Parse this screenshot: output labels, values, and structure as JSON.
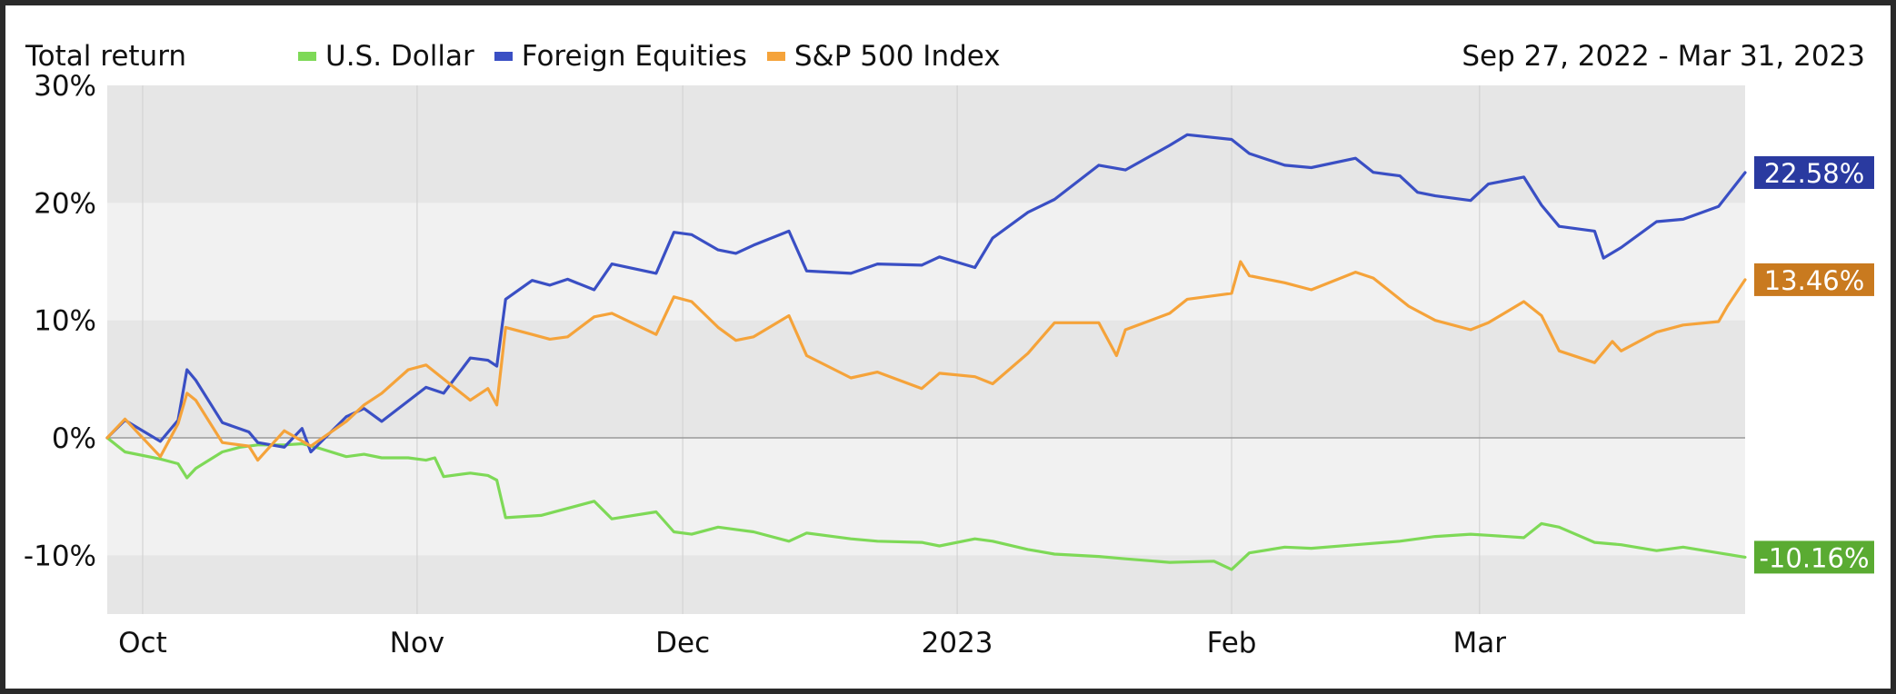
{
  "header": {
    "title": "Total return",
    "date_range": "Sep 27, 2022 - Mar 31, 2023"
  },
  "chart_data": {
    "type": "line",
    "title": "Total return",
    "date_range": "Sep 27, 2022 - Mar 31, 2023",
    "ylim": [
      -15,
      30
    ],
    "y_ticks": [
      {
        "value": 30,
        "label": "30%"
      },
      {
        "value": 20,
        "label": "20%"
      },
      {
        "value": 10,
        "label": "10%"
      },
      {
        "value": 0,
        "label": "0%"
      },
      {
        "value": -10,
        "label": "-10%"
      }
    ],
    "x_ticks": [
      {
        "date": "2022-10-01",
        "label": "Oct"
      },
      {
        "date": "2022-11-01",
        "label": "Nov"
      },
      {
        "date": "2022-12-01",
        "label": "Dec"
      },
      {
        "date": "2023-01-01",
        "label": "2023"
      },
      {
        "date": "2023-02-01",
        "label": "Feb"
      },
      {
        "date": "2023-03-01",
        "label": "Mar"
      }
    ],
    "x_range": [
      "2022-09-27",
      "2023-03-31"
    ],
    "grid": true,
    "legend_position": "top",
    "series": [
      {
        "name": "U.S. Dollar",
        "color": "#7ed957",
        "end_label": "-10.16%",
        "end_label_bg": "#5aab32",
        "points": [
          [
            "2022-09-27",
            0.0
          ],
          [
            "2022-09-29",
            -1.2
          ],
          [
            "2022-10-03",
            -1.8
          ],
          [
            "2022-10-05",
            -2.2
          ],
          [
            "2022-10-06",
            -3.4
          ],
          [
            "2022-10-07",
            -2.6
          ],
          [
            "2022-10-10",
            -1.2
          ],
          [
            "2022-10-12",
            -0.8
          ],
          [
            "2022-10-14",
            -0.6
          ],
          [
            "2022-10-17",
            -0.6
          ],
          [
            "2022-10-19",
            -0.5
          ],
          [
            "2022-10-21",
            -0.9
          ],
          [
            "2022-10-24",
            -1.6
          ],
          [
            "2022-10-26",
            -1.4
          ],
          [
            "2022-10-28",
            -1.7
          ],
          [
            "2022-10-31",
            -1.7
          ],
          [
            "2022-11-02",
            -1.9
          ],
          [
            "2022-11-03",
            -1.7
          ],
          [
            "2022-11-04",
            -3.3
          ],
          [
            "2022-11-07",
            -3.0
          ],
          [
            "2022-11-09",
            -3.2
          ],
          [
            "2022-11-10",
            -3.6
          ],
          [
            "2022-11-11",
            -6.8
          ],
          [
            "2022-11-15",
            -6.6
          ],
          [
            "2022-11-17",
            -6.2
          ],
          [
            "2022-11-21",
            -5.4
          ],
          [
            "2022-11-23",
            -6.9
          ],
          [
            "2022-11-28",
            -6.3
          ],
          [
            "2022-11-30",
            -8.0
          ],
          [
            "2022-12-02",
            -8.2
          ],
          [
            "2022-12-05",
            -7.6
          ],
          [
            "2022-12-07",
            -7.8
          ],
          [
            "2022-12-09",
            -8.0
          ],
          [
            "2022-12-13",
            -8.8
          ],
          [
            "2022-12-15",
            -8.1
          ],
          [
            "2022-12-20",
            -8.6
          ],
          [
            "2022-12-23",
            -8.8
          ],
          [
            "2022-12-28",
            -8.9
          ],
          [
            "2022-12-30",
            -9.2
          ],
          [
            "2023-01-03",
            -8.6
          ],
          [
            "2023-01-05",
            -8.8
          ],
          [
            "2023-01-09",
            -9.5
          ],
          [
            "2023-01-12",
            -9.9
          ],
          [
            "2023-01-17",
            -10.1
          ],
          [
            "2023-01-20",
            -10.3
          ],
          [
            "2023-01-25",
            -10.6
          ],
          [
            "2023-01-30",
            -10.5
          ],
          [
            "2023-02-01",
            -11.2
          ],
          [
            "2023-02-03",
            -9.8
          ],
          [
            "2023-02-07",
            -9.3
          ],
          [
            "2023-02-10",
            -9.4
          ],
          [
            "2023-02-15",
            -9.1
          ],
          [
            "2023-02-20",
            -8.8
          ],
          [
            "2023-02-24",
            -8.4
          ],
          [
            "2023-02-28",
            -8.2
          ],
          [
            "2023-03-02",
            -8.3
          ],
          [
            "2023-03-06",
            -8.5
          ],
          [
            "2023-03-08",
            -7.3
          ],
          [
            "2023-03-10",
            -7.6
          ],
          [
            "2023-03-14",
            -8.9
          ],
          [
            "2023-03-17",
            -9.1
          ],
          [
            "2023-03-21",
            -9.6
          ],
          [
            "2023-03-24",
            -9.3
          ],
          [
            "2023-03-28",
            -9.8
          ],
          [
            "2023-03-31",
            -10.16
          ]
        ]
      },
      {
        "name": "Foreign Equities",
        "color": "#3a4fc4",
        "end_label": "22.58%",
        "end_label_bg": "#2a3aa0",
        "points": [
          [
            "2022-09-27",
            0.0
          ],
          [
            "2022-09-29",
            1.5
          ],
          [
            "2022-10-03",
            -0.3
          ],
          [
            "2022-10-05",
            1.5
          ],
          [
            "2022-10-06",
            5.8
          ],
          [
            "2022-10-07",
            4.9
          ],
          [
            "2022-10-10",
            1.3
          ],
          [
            "2022-10-13",
            0.5
          ],
          [
            "2022-10-14",
            -0.4
          ],
          [
            "2022-10-17",
            -0.8
          ],
          [
            "2022-10-19",
            0.8
          ],
          [
            "2022-10-20",
            -1.2
          ],
          [
            "2022-10-24",
            1.8
          ],
          [
            "2022-10-26",
            2.5
          ],
          [
            "2022-10-28",
            1.4
          ],
          [
            "2022-11-02",
            4.3
          ],
          [
            "2022-11-04",
            3.8
          ],
          [
            "2022-11-07",
            6.8
          ],
          [
            "2022-11-09",
            6.6
          ],
          [
            "2022-11-10",
            6.1
          ],
          [
            "2022-11-11",
            11.8
          ],
          [
            "2022-11-14",
            13.4
          ],
          [
            "2022-11-16",
            13.0
          ],
          [
            "2022-11-18",
            13.5
          ],
          [
            "2022-11-21",
            12.6
          ],
          [
            "2022-11-23",
            14.8
          ],
          [
            "2022-11-28",
            14.0
          ],
          [
            "2022-11-30",
            17.5
          ],
          [
            "2022-12-02",
            17.3
          ],
          [
            "2022-12-05",
            16.0
          ],
          [
            "2022-12-07",
            15.7
          ],
          [
            "2022-12-09",
            16.4
          ],
          [
            "2022-12-13",
            17.6
          ],
          [
            "2022-12-15",
            14.2
          ],
          [
            "2022-12-20",
            14.0
          ],
          [
            "2022-12-23",
            14.8
          ],
          [
            "2022-12-28",
            14.7
          ],
          [
            "2022-12-30",
            15.4
          ],
          [
            "2023-01-03",
            14.5
          ],
          [
            "2023-01-05",
            17.0
          ],
          [
            "2023-01-09",
            19.2
          ],
          [
            "2023-01-12",
            20.3
          ],
          [
            "2023-01-17",
            23.2
          ],
          [
            "2023-01-20",
            22.8
          ],
          [
            "2023-01-25",
            24.9
          ],
          [
            "2023-01-27",
            25.8
          ],
          [
            "2023-02-01",
            25.4
          ],
          [
            "2023-02-03",
            24.2
          ],
          [
            "2023-02-07",
            23.2
          ],
          [
            "2023-02-10",
            23.0
          ],
          [
            "2023-02-15",
            23.8
          ],
          [
            "2023-02-17",
            22.6
          ],
          [
            "2023-02-20",
            22.3
          ],
          [
            "2023-02-22",
            20.9
          ],
          [
            "2023-02-24",
            20.6
          ],
          [
            "2023-02-28",
            20.2
          ],
          [
            "2023-03-02",
            21.6
          ],
          [
            "2023-03-06",
            22.2
          ],
          [
            "2023-03-08",
            19.8
          ],
          [
            "2023-03-10",
            18.0
          ],
          [
            "2023-03-14",
            17.6
          ],
          [
            "2023-03-15",
            15.3
          ],
          [
            "2023-03-17",
            16.2
          ],
          [
            "2023-03-21",
            18.4
          ],
          [
            "2023-03-24",
            18.6
          ],
          [
            "2023-03-28",
            19.7
          ],
          [
            "2023-03-31",
            22.58
          ]
        ]
      },
      {
        "name": "S&P 500 Index",
        "color": "#f5a33a",
        "end_label": "13.46%",
        "end_label_bg": "#c97a1f",
        "points": [
          [
            "2022-09-27",
            0.0
          ],
          [
            "2022-09-29",
            1.6
          ],
          [
            "2022-10-03",
            -1.6
          ],
          [
            "2022-10-05",
            1.2
          ],
          [
            "2022-10-06",
            3.8
          ],
          [
            "2022-10-07",
            3.2
          ],
          [
            "2022-10-10",
            -0.4
          ],
          [
            "2022-10-13",
            -0.7
          ],
          [
            "2022-10-14",
            -1.9
          ],
          [
            "2022-10-17",
            0.6
          ],
          [
            "2022-10-20",
            -0.7
          ],
          [
            "2022-10-24",
            1.4
          ],
          [
            "2022-10-26",
            2.8
          ],
          [
            "2022-10-28",
            3.8
          ],
          [
            "2022-10-31",
            5.8
          ],
          [
            "2022-11-02",
            6.2
          ],
          [
            "2022-11-04",
            5.0
          ],
          [
            "2022-11-07",
            3.2
          ],
          [
            "2022-11-09",
            4.2
          ],
          [
            "2022-11-10",
            2.8
          ],
          [
            "2022-11-11",
            9.4
          ],
          [
            "2022-11-14",
            8.8
          ],
          [
            "2022-11-16",
            8.4
          ],
          [
            "2022-11-18",
            8.6
          ],
          [
            "2022-11-21",
            10.3
          ],
          [
            "2022-11-23",
            10.6
          ],
          [
            "2022-11-28",
            8.8
          ],
          [
            "2022-11-30",
            12.0
          ],
          [
            "2022-12-02",
            11.6
          ],
          [
            "2022-12-05",
            9.4
          ],
          [
            "2022-12-07",
            8.3
          ],
          [
            "2022-12-09",
            8.6
          ],
          [
            "2022-12-13",
            10.4
          ],
          [
            "2022-12-15",
            7.0
          ],
          [
            "2022-12-20",
            5.1
          ],
          [
            "2022-12-23",
            5.6
          ],
          [
            "2022-12-28",
            4.2
          ],
          [
            "2022-12-30",
            5.5
          ],
          [
            "2023-01-03",
            5.2
          ],
          [
            "2023-01-05",
            4.6
          ],
          [
            "2023-01-09",
            7.2
          ],
          [
            "2023-01-12",
            9.8
          ],
          [
            "2023-01-17",
            9.8
          ],
          [
            "2023-01-19",
            7.0
          ],
          [
            "2023-01-20",
            9.2
          ],
          [
            "2023-01-25",
            10.6
          ],
          [
            "2023-01-27",
            11.8
          ],
          [
            "2023-02-01",
            12.3
          ],
          [
            "2023-02-02",
            15.0
          ],
          [
            "2023-02-03",
            13.8
          ],
          [
            "2023-02-07",
            13.2
          ],
          [
            "2023-02-10",
            12.6
          ],
          [
            "2023-02-15",
            14.1
          ],
          [
            "2023-02-17",
            13.6
          ],
          [
            "2023-02-21",
            11.2
          ],
          [
            "2023-02-24",
            10.0
          ],
          [
            "2023-02-28",
            9.2
          ],
          [
            "2023-03-02",
            9.8
          ],
          [
            "2023-03-06",
            11.6
          ],
          [
            "2023-03-08",
            10.4
          ],
          [
            "2023-03-10",
            7.4
          ],
          [
            "2023-03-14",
            6.4
          ],
          [
            "2023-03-16",
            8.2
          ],
          [
            "2023-03-17",
            7.4
          ],
          [
            "2023-03-21",
            9.0
          ],
          [
            "2023-03-24",
            9.6
          ],
          [
            "2023-03-28",
            9.9
          ],
          [
            "2023-03-29",
            11.2
          ],
          [
            "2023-03-31",
            13.46
          ]
        ]
      }
    ]
  }
}
